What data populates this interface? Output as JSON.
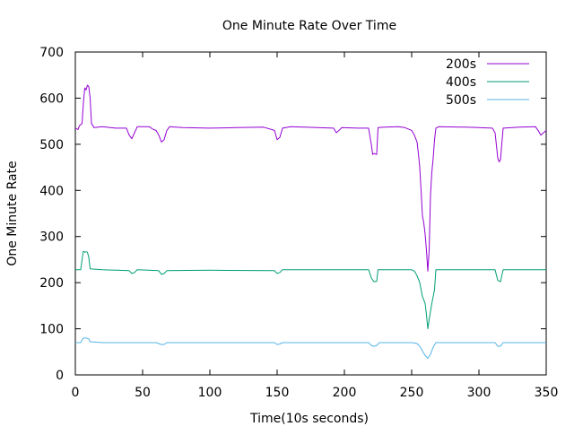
{
  "chart_data": {
    "type": "line",
    "title": "One Minute Rate Over Time",
    "xlabel": "Time(10s seconds)",
    "ylabel": "One Minute Rate",
    "xlim": [
      0,
      350
    ],
    "ylim": [
      0,
      700
    ],
    "xticks": [
      0,
      50,
      100,
      150,
      200,
      250,
      300,
      350
    ],
    "yticks": [
      0,
      100,
      200,
      300,
      400,
      500,
      600,
      700
    ],
    "grid": false,
    "legend_position": "top-right",
    "series": [
      {
        "name": "200s",
        "color": "#9400d3",
        "points": [
          [
            0,
            535
          ],
          [
            2,
            532
          ],
          [
            3,
            540
          ],
          [
            5,
            545
          ],
          [
            6,
            590
          ],
          [
            7,
            622
          ],
          [
            8,
            618
          ],
          [
            9,
            628
          ],
          [
            10,
            625
          ],
          [
            11,
            600
          ],
          [
            12,
            545
          ],
          [
            14,
            536
          ],
          [
            20,
            538
          ],
          [
            30,
            535
          ],
          [
            38,
            535
          ],
          [
            40,
            520
          ],
          [
            42,
            512
          ],
          [
            44,
            525
          ],
          [
            46,
            538
          ],
          [
            55,
            538
          ],
          [
            58,
            532
          ],
          [
            60,
            530
          ],
          [
            62,
            520
          ],
          [
            64,
            505
          ],
          [
            66,
            510
          ],
          [
            68,
            530
          ],
          [
            70,
            538
          ],
          [
            80,
            536
          ],
          [
            100,
            535
          ],
          [
            120,
            536
          ],
          [
            140,
            537
          ],
          [
            148,
            530
          ],
          [
            150,
            510
          ],
          [
            152,
            515
          ],
          [
            154,
            535
          ],
          [
            160,
            538
          ],
          [
            180,
            536
          ],
          [
            192,
            535
          ],
          [
            194,
            525
          ],
          [
            196,
            530
          ],
          [
            198,
            536
          ],
          [
            210,
            535
          ],
          [
            218,
            535
          ],
          [
            220,
            500
          ],
          [
            221,
            478
          ],
          [
            222,
            480
          ],
          [
            224,
            478
          ],
          [
            225,
            536
          ],
          [
            230,
            537
          ],
          [
            240,
            538
          ],
          [
            245,
            536
          ],
          [
            250,
            530
          ],
          [
            252,
            520
          ],
          [
            254,
            505
          ],
          [
            255,
            480
          ],
          [
            256,
            450
          ],
          [
            257,
            400
          ],
          [
            258,
            345
          ],
          [
            259,
            330
          ],
          [
            260,
            305
          ],
          [
            261,
            270
          ],
          [
            262,
            225
          ],
          [
            263,
            270
          ],
          [
            264,
            390
          ],
          [
            265,
            440
          ],
          [
            266,
            470
          ],
          [
            267,
            510
          ],
          [
            268,
            535
          ],
          [
            270,
            538
          ],
          [
            290,
            537
          ],
          [
            300,
            536
          ],
          [
            310,
            535
          ],
          [
            312,
            525
          ],
          [
            314,
            470
          ],
          [
            315,
            462
          ],
          [
            316,
            466
          ],
          [
            318,
            535
          ],
          [
            330,
            537
          ],
          [
            342,
            538
          ],
          [
            344,
            530
          ],
          [
            346,
            520
          ],
          [
            348,
            525
          ],
          [
            350,
            530
          ]
        ]
      },
      {
        "name": "400s",
        "color": "#009e73",
        "points": [
          [
            0,
            228
          ],
          [
            4,
            228
          ],
          [
            5,
            250
          ],
          [
            6,
            268
          ],
          [
            7,
            266
          ],
          [
            8,
            267
          ],
          [
            9,
            266
          ],
          [
            10,
            255
          ],
          [
            11,
            230
          ],
          [
            20,
            228
          ],
          [
            40,
            226
          ],
          [
            42,
            220
          ],
          [
            44,
            222
          ],
          [
            46,
            228
          ],
          [
            62,
            226
          ],
          [
            64,
            218
          ],
          [
            66,
            220
          ],
          [
            68,
            226
          ],
          [
            100,
            227
          ],
          [
            148,
            226
          ],
          [
            150,
            220
          ],
          [
            152,
            222
          ],
          [
            154,
            228
          ],
          [
            200,
            228
          ],
          [
            218,
            228
          ],
          [
            220,
            210
          ],
          [
            222,
            202
          ],
          [
            224,
            203
          ],
          [
            225,
            228
          ],
          [
            250,
            228
          ],
          [
            252,
            225
          ],
          [
            254,
            215
          ],
          [
            256,
            200
          ],
          [
            258,
            170
          ],
          [
            260,
            155
          ],
          [
            261,
            130
          ],
          [
            262,
            100
          ],
          [
            263,
            120
          ],
          [
            265,
            155
          ],
          [
            267,
            185
          ],
          [
            268,
            228
          ],
          [
            300,
            228
          ],
          [
            312,
            228
          ],
          [
            314,
            205
          ],
          [
            316,
            202
          ],
          [
            318,
            228
          ],
          [
            350,
            228
          ]
        ]
      },
      {
        "name": "500s",
        "color": "#56b4e9",
        "points": [
          [
            0,
            70
          ],
          [
            4,
            70
          ],
          [
            5,
            76
          ],
          [
            6,
            80
          ],
          [
            8,
            80
          ],
          [
            10,
            78
          ],
          [
            11,
            72
          ],
          [
            20,
            70
          ],
          [
            40,
            70
          ],
          [
            60,
            70
          ],
          [
            64,
            66
          ],
          [
            66,
            66
          ],
          [
            68,
            70
          ],
          [
            100,
            70
          ],
          [
            148,
            70
          ],
          [
            150,
            66
          ],
          [
            152,
            67
          ],
          [
            154,
            70
          ],
          [
            200,
            70
          ],
          [
            218,
            70
          ],
          [
            220,
            64
          ],
          [
            222,
            62
          ],
          [
            224,
            64
          ],
          [
            226,
            70
          ],
          [
            250,
            70
          ],
          [
            254,
            68
          ],
          [
            256,
            62
          ],
          [
            258,
            52
          ],
          [
            260,
            42
          ],
          [
            262,
            36
          ],
          [
            264,
            45
          ],
          [
            266,
            60
          ],
          [
            268,
            70
          ],
          [
            300,
            70
          ],
          [
            312,
            70
          ],
          [
            314,
            62
          ],
          [
            316,
            62
          ],
          [
            318,
            70
          ],
          [
            350,
            70
          ]
        ]
      }
    ]
  }
}
